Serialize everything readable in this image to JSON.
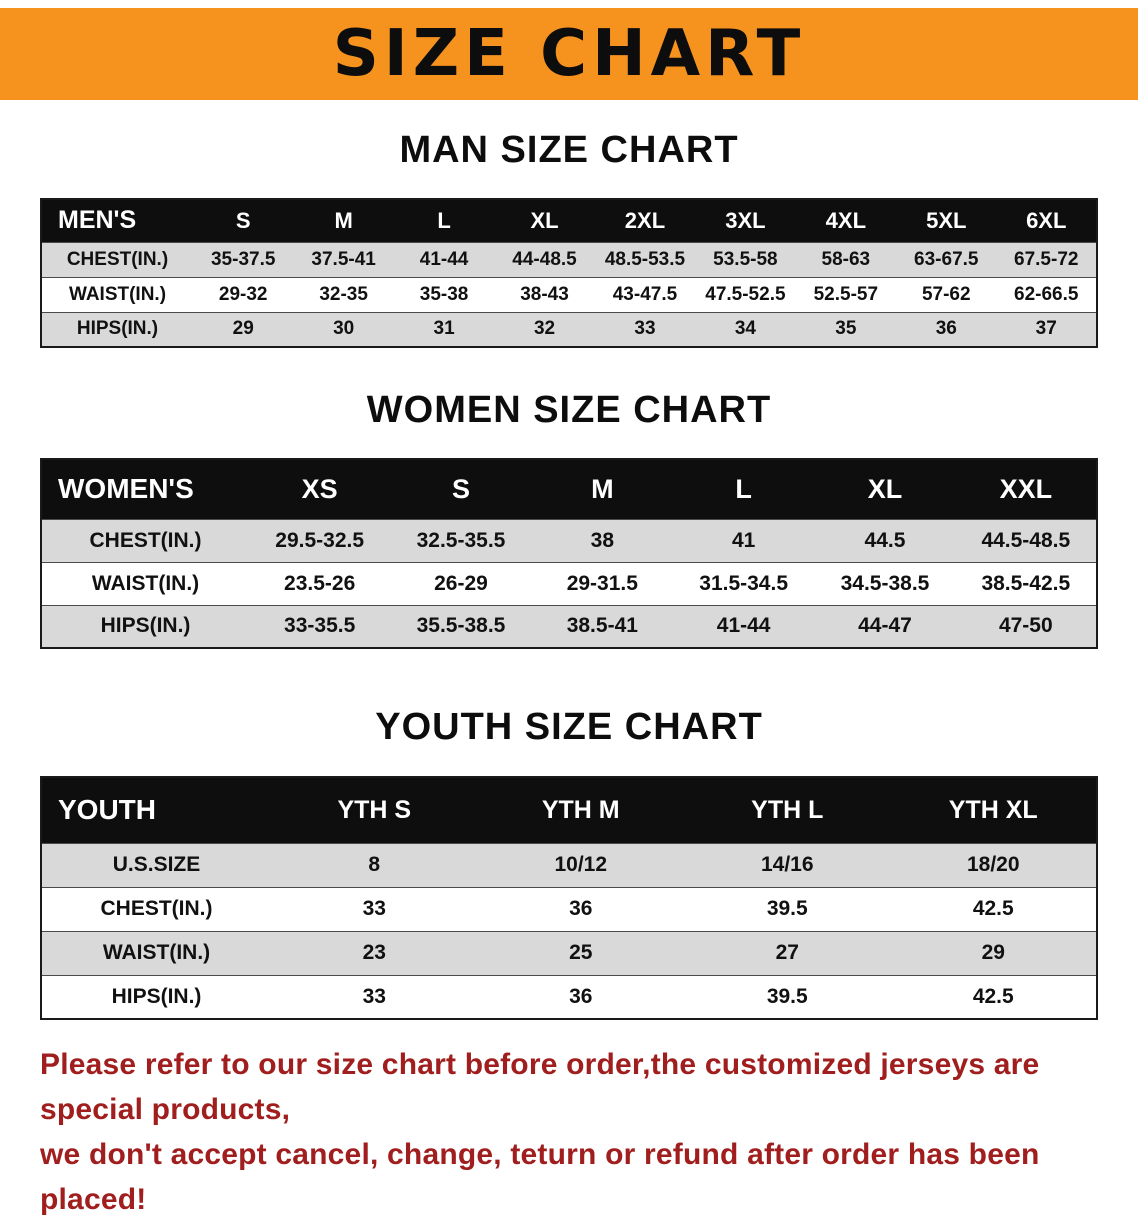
{
  "banner": {
    "title": "SIZE CHART"
  },
  "sections": {
    "men_title": "MAN SIZE CHART",
    "women_title": "WOMEN SIZE CHART",
    "youth_title": "YOUTH SIZE CHART"
  },
  "men_table": {
    "header": [
      "MEN'S",
      "S",
      "M",
      "L",
      "XL",
      "2XL",
      "3XL",
      "4XL",
      "5XL",
      "6XL"
    ],
    "rows": [
      {
        "label": "CHEST(IN.)",
        "values": [
          "35-37.5",
          "37.5-41",
          "41-44",
          "44-48.5",
          "48.5-53.5",
          "53.5-58",
          "58-63",
          "63-67.5",
          "67.5-72"
        ]
      },
      {
        "label": "WAIST(IN.)",
        "values": [
          "29-32",
          "32-35",
          "35-38",
          "38-43",
          "43-47.5",
          "47.5-52.5",
          "52.5-57",
          "57-62",
          "62-66.5"
        ]
      },
      {
        "label": "HIPS(IN.)",
        "values": [
          "29",
          "30",
          "31",
          "32",
          "33",
          "34",
          "35",
          "36",
          "37"
        ]
      }
    ]
  },
  "women_table": {
    "header": [
      "WOMEN'S",
      "XS",
      "S",
      "M",
      "L",
      "XL",
      "XXL"
    ],
    "rows": [
      {
        "label": "CHEST(IN.)",
        "values": [
          "29.5-32.5",
          "32.5-35.5",
          "38",
          "41",
          "44.5",
          "44.5-48.5"
        ]
      },
      {
        "label": "WAIST(IN.)",
        "values": [
          "23.5-26",
          "26-29",
          "29-31.5",
          "31.5-34.5",
          "34.5-38.5",
          "38.5-42.5"
        ]
      },
      {
        "label": "HIPS(IN.)",
        "values": [
          "33-35.5",
          "35.5-38.5",
          "38.5-41",
          "41-44",
          "44-47",
          "47-50"
        ]
      }
    ]
  },
  "youth_table": {
    "header": [
      "YOUTH",
      "YTH S",
      "YTH M",
      "YTH L",
      "YTH XL"
    ],
    "rows": [
      {
        "label": "U.S.SIZE",
        "values": [
          "8",
          "10/12",
          "14/16",
          "18/20"
        ]
      },
      {
        "label": "CHEST(IN.)",
        "values": [
          "33",
          "36",
          "39.5",
          "42.5"
        ]
      },
      {
        "label": "WAIST(IN.)",
        "values": [
          "23",
          "25",
          "27",
          "29"
        ]
      },
      {
        "label": "HIPS(IN.)",
        "values": [
          "33",
          "36",
          "39.5",
          "42.5"
        ]
      }
    ]
  },
  "footer": {
    "line1": "Please refer to our size chart before order,the customized jerseys are special products,",
    "line2": "we don't accept cancel, change, teturn or refund after order has been placed!"
  },
  "colors": {
    "banner_orange": "#F6921E",
    "header_black": "#0E0E0E",
    "row_shade_gray": "#D9D9D9",
    "footer_red": "#A01E1E"
  }
}
